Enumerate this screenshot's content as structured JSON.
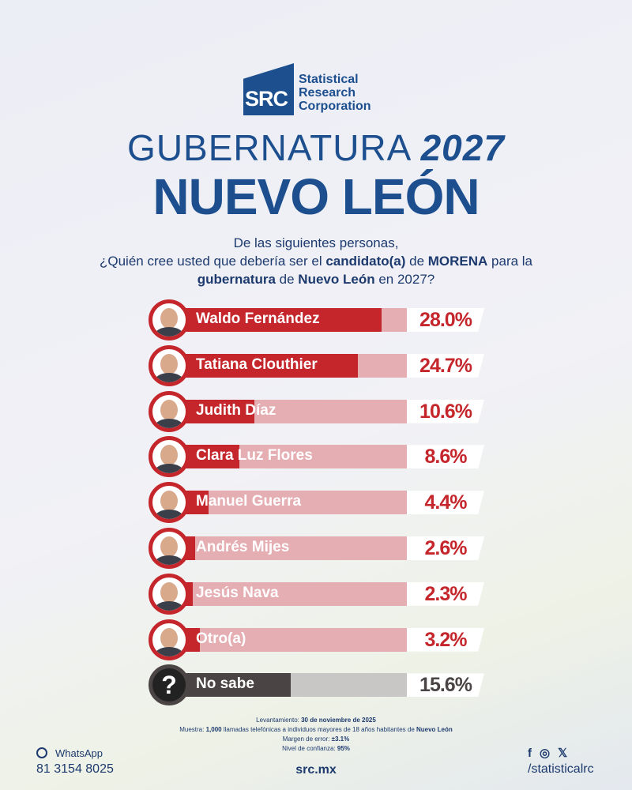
{
  "logo": {
    "abbr": "SRC",
    "name_lines": [
      "Statistical",
      "Research",
      "Corporation"
    ]
  },
  "header": {
    "title_line1_a": "GUBERNATURA ",
    "title_line1_b": "2027",
    "title_line2": "NUEVO LEÓN"
  },
  "question": {
    "line1": "De las siguientes personas,",
    "line2_a": "¿Quién cree usted que debería ser el ",
    "line2_b": "candidato(a)",
    "line2_c": " de ",
    "line2_d": "MORENA",
    "line2_e": " para la",
    "line3_a": "gubernatura",
    "line3_b": " de ",
    "line3_c": "Nuevo León",
    "line3_d": " en 2027?"
  },
  "chart_data": {
    "type": "bar",
    "orientation": "horizontal",
    "unit": "%",
    "categories": [
      "Waldo Fernández",
      "Tatiana Clouthier",
      "Judith Díaz",
      "Clara Luz Flores",
      "Manuel Guerra",
      "Andrés Mijes",
      "Jesús Nava",
      "Otro(a)",
      "No sabe"
    ],
    "values": [
      28.0,
      24.7,
      10.6,
      8.6,
      4.4,
      2.6,
      2.3,
      3.2,
      15.6
    ],
    "labels": [
      "28.0%",
      "24.7%",
      "10.6%",
      "8.6%",
      "4.4%",
      "2.6%",
      "2.3%",
      "3.2%",
      "15.6%"
    ],
    "colors": {
      "bar": "#c4262b",
      "track": "#e4aeb3",
      "no_sabe": "#4a4444"
    }
  },
  "footer": {
    "fieldwork_label": "Levantamiento: ",
    "fieldwork": "30 de noviembre de 2025",
    "sample_label": "Muestra: ",
    "sample_n": "1,000",
    "sample_text": " llamadas telefónicas a individuos mayores de 18 años habitantes de ",
    "sample_place": "Nuevo León",
    "margin_label": "Margen de error: ",
    "margin": "±3.1%",
    "confidence_label": "Nivel de confianza: ",
    "confidence": "95%",
    "whatsapp_label": "WhatsApp",
    "phone": "81 3154 8025",
    "site": "src.mx",
    "handle": "/statisticalrc"
  }
}
